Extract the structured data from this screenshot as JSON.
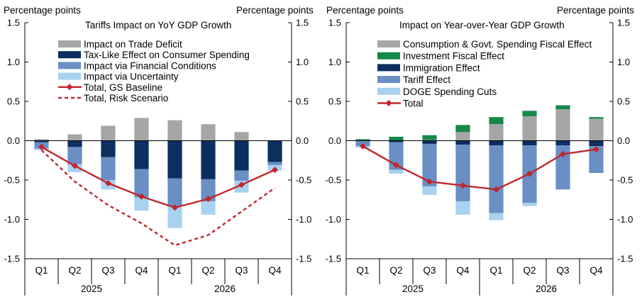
{
  "chart_data": [
    {
      "type": "bar",
      "stacked": true,
      "title": "Tariffs  Impact on YoY GDP Growth",
      "ylabel_left": "Percentage points",
      "ylabel_right": "Percentage points",
      "ylim": [
        -1.5,
        1.5
      ],
      "yticks": [
        "1.5",
        "1.0",
        "0.5",
        "0.0",
        "-0.5",
        "-1.0",
        "-1.5"
      ],
      "categories": [
        "Q1",
        "Q2",
        "Q3",
        "Q4",
        "Q1",
        "Q2",
        "Q3",
        "Q4"
      ],
      "years": [
        "2025",
        "2026"
      ],
      "series": [
        {
          "name": "Impact on Trade Deficit",
          "color": "#a6a6a6",
          "values": [
            0.02,
            0.08,
            0.19,
            0.29,
            0.26,
            0.21,
            0.11,
            0.0
          ]
        },
        {
          "name": "Tax-Like Effect on Consumer Spending",
          "color": "#0b2f5e",
          "values": [
            -0.02,
            -0.08,
            -0.21,
            -0.36,
            -0.48,
            -0.49,
            -0.38,
            -0.27
          ]
        },
        {
          "name": "Impact via Financial Conditions",
          "color": "#6a8fc4",
          "values": [
            -0.08,
            -0.22,
            -0.29,
            -0.36,
            -0.35,
            -0.28,
            -0.13,
            -0.04
          ]
        },
        {
          "name": "Impact via Uncertainty",
          "color": "#a9d2f0",
          "values": [
            -0.02,
            -0.1,
            -0.12,
            -0.17,
            -0.28,
            -0.17,
            -0.15,
            -0.07
          ]
        }
      ],
      "lines": [
        {
          "name": "Total, GS Baseline",
          "color": "#c0272d",
          "style": "solid",
          "marker": "diamond",
          "values": [
            -0.08,
            -0.32,
            -0.54,
            -0.71,
            -0.85,
            -0.74,
            -0.56,
            -0.37
          ]
        },
        {
          "name": "Total, Risk Scenario",
          "color": "#c0272d",
          "style": "dashed",
          "marker": "none",
          "values": [
            -0.12,
            -0.52,
            -0.82,
            -1.05,
            -1.33,
            -1.2,
            -0.9,
            -0.6
          ]
        }
      ]
    },
    {
      "type": "bar",
      "stacked": true,
      "title": "Impact on Year-over-Year  GDP Growth",
      "ylabel_left": "Percentage points",
      "ylabel_right": "Percentage points",
      "ylim": [
        -1.5,
        1.5
      ],
      "yticks": [
        "1.5",
        "1.0",
        "0.5",
        "0.0",
        "-0.5",
        "-1.0",
        "-1.5"
      ],
      "categories": [
        "Q1",
        "Q2",
        "Q3",
        "Q4",
        "Q1",
        "Q2",
        "Q3",
        "Q4"
      ],
      "years": [
        "2025",
        "2026"
      ],
      "series": [
        {
          "name": "Consumption & Govt. Spending Fiscal Effect",
          "color": "#a6a6a6",
          "values": [
            0.0,
            0.0,
            0.01,
            0.11,
            0.21,
            0.31,
            0.4,
            0.28
          ]
        },
        {
          "name": "Investment Fiscal Effect",
          "color": "#13884a",
          "values": [
            0.02,
            0.05,
            0.06,
            0.09,
            0.09,
            0.07,
            0.05,
            0.02
          ]
        },
        {
          "name": "Immigration Effect",
          "color": "#0b2f5e",
          "values": [
            0.0,
            -0.02,
            -0.04,
            -0.05,
            -0.06,
            -0.06,
            -0.06,
            -0.07
          ]
        },
        {
          "name": "Tariff Effect",
          "color": "#6a8fc4",
          "values": [
            -0.07,
            -0.35,
            -0.54,
            -0.72,
            -0.86,
            -0.73,
            -0.56,
            -0.34
          ]
        },
        {
          "name": "DOGE Spending Cuts",
          "color": "#a9d2f0",
          "values": [
            -0.02,
            -0.05,
            -0.11,
            -0.17,
            -0.09,
            -0.04,
            0.0,
            0.0
          ]
        }
      ],
      "lines": [
        {
          "name": "Total",
          "color": "#c0272d",
          "style": "solid",
          "marker": "diamond",
          "values": [
            -0.07,
            -0.31,
            -0.52,
            -0.57,
            -0.62,
            -0.42,
            -0.17,
            -0.11
          ]
        }
      ]
    }
  ]
}
